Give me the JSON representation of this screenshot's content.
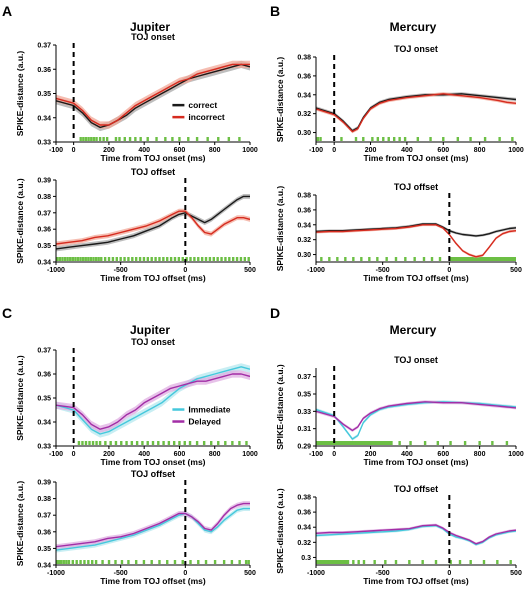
{
  "colors": {
    "correct": "#1a1a1a",
    "incorrect": "#d62b1f",
    "immediate": "#45c8dc",
    "delayed": "#a22ea6",
    "correct_band": "#a8a8a8",
    "incorrect_band": "#f2a898",
    "immediate_band": "#b6e8ef",
    "delayed_band": "#dfaee1",
    "significance": "#6cbf44"
  },
  "chart_data": [
    {
      "type": "line",
      "panel": "A",
      "monkey": "Jupiter",
      "title": "TOJ onset",
      "xlabel": "Time from TOJ onset (ms)",
      "ylabel": "SPIKE-distance (a.u.)",
      "xlim": [
        -100,
        1000
      ],
      "ylim": [
        0.33,
        0.37
      ],
      "xticks": [
        -100,
        0,
        200,
        400,
        600,
        800,
        1000
      ],
      "yticks": [
        0.33,
        0.34,
        0.35,
        0.36,
        0.37
      ],
      "band": 0.0015,
      "x": [
        -100,
        0,
        50,
        100,
        150,
        200,
        250,
        300,
        350,
        400,
        450,
        500,
        550,
        600,
        650,
        700,
        750,
        800,
        850,
        900,
        950,
        1000
      ],
      "legend": "inside",
      "series": [
        {
          "name": "correct",
          "key": "correct",
          "values": [
            0.347,
            0.345,
            0.342,
            0.338,
            0.336,
            0.337,
            0.339,
            0.341,
            0.344,
            0.346,
            0.348,
            0.35,
            0.352,
            0.354,
            0.356,
            0.357,
            0.358,
            0.359,
            0.36,
            0.361,
            0.362,
            0.361
          ]
        },
        {
          "name": "incorrect",
          "key": "incorrect",
          "values": [
            0.348,
            0.346,
            0.343,
            0.339,
            0.337,
            0.337,
            0.339,
            0.342,
            0.345,
            0.347,
            0.349,
            0.351,
            0.353,
            0.355,
            0.356,
            0.358,
            0.359,
            0.36,
            0.361,
            0.362,
            0.362,
            0.362
          ]
        }
      ],
      "significance_x": [
        40,
        55,
        70,
        85,
        100,
        115,
        130,
        150,
        170,
        190,
        240,
        260,
        290,
        320,
        350,
        380,
        420,
        470,
        520,
        560,
        600,
        650,
        700,
        760,
        820,
        880,
        940
      ]
    },
    {
      "type": "line",
      "panel": "B",
      "monkey": "Mercury",
      "title": "TOJ onset",
      "xlabel": "Time from TOJ onset (ms)",
      "ylabel": "SPIKE-distance (a.u.)",
      "xlim": [
        -100,
        1000
      ],
      "ylim": [
        0.29,
        0.38
      ],
      "xticks": [
        -100,
        0,
        200,
        400,
        600,
        800,
        1000
      ],
      "yticks": [
        0.3,
        0.32,
        0.34,
        0.36,
        0.38
      ],
      "band": 0.0018,
      "x": [
        -100,
        0,
        50,
        100,
        130,
        160,
        200,
        250,
        300,
        400,
        500,
        600,
        700,
        800,
        900,
        950,
        1000
      ],
      "legend": "none",
      "series": [
        {
          "name": "",
          "key": "correct",
          "values": [
            0.326,
            0.32,
            0.312,
            0.302,
            0.305,
            0.316,
            0.326,
            0.332,
            0.335,
            0.338,
            0.34,
            0.34,
            0.341,
            0.339,
            0.337,
            0.336,
            0.335
          ]
        },
        {
          "name": "",
          "key": "incorrect",
          "values": [
            0.325,
            0.319,
            0.311,
            0.301,
            0.304,
            0.315,
            0.325,
            0.331,
            0.334,
            0.337,
            0.339,
            0.341,
            0.339,
            0.337,
            0.334,
            0.332,
            0.331
          ]
        }
      ],
      "significance_x": [
        -90,
        -75,
        40,
        120,
        160,
        210,
        240,
        270,
        300,
        330,
        360,
        390,
        460,
        530,
        600,
        680,
        750,
        830,
        910,
        980
      ]
    },
    {
      "type": "line",
      "panel": "A",
      "monkey": "Jupiter",
      "title": "TOJ offset",
      "xlabel": "Time from TOJ offset (ms)",
      "ylabel": "SPIKE-distance (a.u.)",
      "xlim": [
        -1000,
        500
      ],
      "ylim": [
        0.34,
        0.39
      ],
      "xticks": [
        -1000,
        -500,
        0,
        500
      ],
      "yticks": [
        0.34,
        0.35,
        0.36,
        0.37,
        0.38,
        0.39
      ],
      "band": 0.0015,
      "x": [
        -1000,
        -900,
        -800,
        -700,
        -600,
        -500,
        -400,
        -300,
        -200,
        -100,
        -50,
        0,
        50,
        100,
        150,
        200,
        250,
        300,
        350,
        400,
        450,
        500
      ],
      "legend": "none",
      "series": [
        {
          "name": "",
          "key": "correct",
          "values": [
            0.348,
            0.349,
            0.35,
            0.351,
            0.352,
            0.354,
            0.356,
            0.359,
            0.362,
            0.367,
            0.369,
            0.37,
            0.368,
            0.366,
            0.364,
            0.366,
            0.369,
            0.372,
            0.375,
            0.378,
            0.38,
            0.38
          ]
        },
        {
          "name": "",
          "key": "incorrect",
          "values": [
            0.351,
            0.352,
            0.353,
            0.355,
            0.356,
            0.358,
            0.36,
            0.362,
            0.365,
            0.369,
            0.371,
            0.371,
            0.367,
            0.362,
            0.358,
            0.357,
            0.36,
            0.363,
            0.365,
            0.367,
            0.367,
            0.366
          ]
        }
      ],
      "significance_x": [
        -990,
        -970,
        -950,
        -930,
        -910,
        -890,
        -870,
        -850,
        -830,
        -810,
        -790,
        -770,
        -750,
        -730,
        -710,
        -690,
        -670,
        -650,
        -620,
        -590,
        -560,
        -530,
        -500,
        -470,
        -440,
        -410,
        -380,
        -350,
        -320,
        -290,
        -260,
        -230,
        -200,
        -170,
        -140,
        -110,
        -80,
        -50,
        -20,
        10,
        40,
        70,
        100,
        130,
        160,
        190,
        220,
        250,
        280,
        310,
        340,
        370,
        400,
        430,
        460,
        490
      ]
    },
    {
      "type": "line",
      "panel": "B",
      "monkey": "Mercury",
      "title": "TOJ offset",
      "xlabel": "Time from TOJ offset (ms)",
      "ylabel": "SPIKE-distance (a.u.)",
      "xlim": [
        -1000,
        500
      ],
      "ylim": [
        0.29,
        0.38
      ],
      "xticks": [
        -1000,
        -500,
        0,
        500
      ],
      "yticks": [
        0.3,
        0.32,
        0.34,
        0.36,
        0.38
      ],
      "band": 0.0018,
      "x": [
        -1000,
        -900,
        -800,
        -700,
        -600,
        -500,
        -400,
        -300,
        -200,
        -100,
        -50,
        0,
        50,
        100,
        150,
        200,
        250,
        300,
        350,
        400,
        450,
        500
      ],
      "legend": "none",
      "series": [
        {
          "name": "",
          "key": "correct",
          "values": [
            0.331,
            0.332,
            0.332,
            0.333,
            0.334,
            0.335,
            0.336,
            0.338,
            0.341,
            0.341,
            0.337,
            0.332,
            0.329,
            0.327,
            0.326,
            0.325,
            0.326,
            0.328,
            0.331,
            0.333,
            0.335,
            0.336
          ]
        },
        {
          "name": "",
          "key": "incorrect",
          "values": [
            0.33,
            0.331,
            0.331,
            0.332,
            0.333,
            0.334,
            0.335,
            0.337,
            0.34,
            0.34,
            0.336,
            0.327,
            0.315,
            0.305,
            0.3,
            0.297,
            0.299,
            0.31,
            0.322,
            0.328,
            0.331,
            0.332
          ]
        }
      ],
      "significance_x": [
        -960,
        -900,
        -840,
        -780,
        -720,
        -660,
        -600,
        -540,
        -470,
        -400,
        -330,
        -260,
        -190,
        -130,
        -70,
        5,
        15,
        25,
        35,
        45,
        55,
        65,
        75,
        85,
        95,
        105,
        115,
        125,
        135,
        145,
        155,
        165,
        175,
        185,
        195,
        205,
        215,
        225,
        235,
        245,
        255,
        265,
        275,
        285,
        295,
        305,
        315,
        325,
        335,
        345,
        355,
        365,
        375,
        385,
        395,
        405,
        415,
        425,
        435,
        445,
        455,
        465,
        475,
        485,
        495
      ]
    },
    {
      "type": "line",
      "panel": "C",
      "monkey": "Jupiter",
      "title": "TOJ onset",
      "xlabel": "Time from TOJ onset (ms)",
      "ylabel": "SPIKE-distance (a.u.)",
      "xlim": [
        -100,
        1000
      ],
      "ylim": [
        0.33,
        0.37
      ],
      "xticks": [
        -100,
        0,
        200,
        400,
        600,
        800,
        1000
      ],
      "yticks": [
        0.33,
        0.34,
        0.35,
        0.36,
        0.37
      ],
      "band": 0.0015,
      "x": [
        -100,
        0,
        50,
        100,
        150,
        200,
        250,
        300,
        350,
        400,
        450,
        500,
        550,
        600,
        650,
        700,
        750,
        800,
        850,
        900,
        950,
        1000
      ],
      "legend": "inside",
      "series": [
        {
          "name": "Immediate",
          "key": "immediate",
          "values": [
            0.347,
            0.345,
            0.341,
            0.337,
            0.335,
            0.336,
            0.338,
            0.34,
            0.342,
            0.344,
            0.346,
            0.348,
            0.351,
            0.354,
            0.356,
            0.358,
            0.359,
            0.36,
            0.361,
            0.362,
            0.363,
            0.362
          ]
        },
        {
          "name": "Delayed",
          "key": "delayed",
          "values": [
            0.347,
            0.346,
            0.343,
            0.339,
            0.337,
            0.338,
            0.34,
            0.343,
            0.345,
            0.348,
            0.35,
            0.352,
            0.354,
            0.355,
            0.356,
            0.357,
            0.357,
            0.358,
            0.359,
            0.36,
            0.36,
            0.359
          ]
        }
      ],
      "significance_x": [
        30,
        50,
        70,
        90,
        110,
        130,
        150,
        180,
        210,
        240,
        270,
        300,
        330,
        360,
        390,
        420,
        450,
        480,
        510,
        540,
        570,
        600,
        630,
        660,
        700,
        740,
        780,
        820,
        860,
        900,
        940,
        980
      ]
    },
    {
      "type": "line",
      "panel": "D",
      "monkey": "Mercury",
      "title": "TOJ onset",
      "xlabel": "Time from TOJ onset (ms)",
      "ylabel": "SPIKE-distance (a.u.)",
      "xlim": [
        -100,
        1000
      ],
      "ylim": [
        0.29,
        0.38
      ],
      "xticks": [
        -100,
        0,
        200,
        400,
        600,
        800,
        1000
      ],
      "yticks": [
        0.29,
        0.31,
        0.33,
        0.35,
        0.37
      ],
      "band": 0.0018,
      "x": [
        -100,
        0,
        50,
        100,
        130,
        160,
        200,
        250,
        300,
        400,
        500,
        600,
        700,
        800,
        900,
        950,
        1000
      ],
      "legend": "none",
      "series": [
        {
          "name": "",
          "key": "immediate",
          "values": [
            0.332,
            0.325,
            0.312,
            0.298,
            0.302,
            0.317,
            0.326,
            0.332,
            0.335,
            0.338,
            0.34,
            0.341,
            0.34,
            0.339,
            0.337,
            0.336,
            0.335
          ]
        },
        {
          "name": "",
          "key": "delayed",
          "values": [
            0.33,
            0.324,
            0.315,
            0.308,
            0.312,
            0.322,
            0.328,
            0.333,
            0.336,
            0.339,
            0.341,
            0.34,
            0.34,
            0.338,
            0.336,
            0.335,
            0.334
          ]
        }
      ],
      "significance_x": [
        -95,
        -85,
        -75,
        -65,
        -55,
        -45,
        -35,
        -25,
        -15,
        -5,
        5,
        15,
        25,
        35,
        45,
        55,
        65,
        75,
        85,
        95,
        105,
        115,
        125,
        135,
        145,
        155,
        165,
        175,
        185,
        195,
        205,
        215,
        225,
        235,
        245,
        255,
        265,
        275,
        285,
        295,
        305,
        315,
        360,
        420,
        500,
        570,
        640,
        720,
        800,
        870,
        950
      ]
    },
    {
      "type": "line",
      "panel": "C",
      "monkey": "Jupiter",
      "title": "TOJ offset",
      "xlabel": "Time from TOJ offset (ms)",
      "ylabel": "SPIKE-distance (a.u.)",
      "xlim": [
        -1000,
        500
      ],
      "ylim": [
        0.34,
        0.39
      ],
      "xticks": [
        -1000,
        -500,
        0,
        500
      ],
      "yticks": [
        0.34,
        0.35,
        0.36,
        0.37,
        0.38,
        0.39
      ],
      "band": 0.0015,
      "x": [
        -1000,
        -900,
        -800,
        -700,
        -600,
        -500,
        -400,
        -300,
        -200,
        -100,
        -50,
        0,
        50,
        100,
        150,
        200,
        250,
        300,
        350,
        400,
        450,
        500
      ],
      "legend": "none",
      "series": [
        {
          "name": "",
          "key": "immediate",
          "values": [
            0.349,
            0.35,
            0.351,
            0.352,
            0.354,
            0.356,
            0.358,
            0.361,
            0.364,
            0.368,
            0.37,
            0.371,
            0.369,
            0.365,
            0.361,
            0.36,
            0.363,
            0.367,
            0.37,
            0.373,
            0.374,
            0.374
          ]
        },
        {
          "name": "",
          "key": "delayed",
          "values": [
            0.351,
            0.352,
            0.353,
            0.354,
            0.356,
            0.357,
            0.359,
            0.362,
            0.365,
            0.369,
            0.371,
            0.371,
            0.369,
            0.366,
            0.362,
            0.361,
            0.365,
            0.37,
            0.374,
            0.376,
            0.377,
            0.377
          ]
        }
      ],
      "significance_x": [
        -990,
        -975,
        -960,
        -940,
        -920,
        -900,
        -870,
        -840,
        -810,
        -780,
        -750,
        -720,
        -690,
        -640,
        -590,
        -540,
        -490,
        -440,
        -380,
        -320,
        -260,
        -200,
        -140,
        -80,
        -20,
        40,
        100,
        160,
        230,
        300,
        360,
        420,
        470,
        490
      ]
    },
    {
      "type": "line",
      "panel": "D",
      "monkey": "Mercury",
      "title": "TOJ offset",
      "xlabel": "Time from TOJ offset (ms)",
      "ylabel": "SPIKE-distance (a.u.)",
      "xlim": [
        -1000,
        500
      ],
      "ylim": [
        0.29,
        0.38
      ],
      "xticks": [
        -1000,
        -500,
        0,
        500
      ],
      "yticks": [
        0.3,
        0.32,
        0.34,
        0.36,
        0.38
      ],
      "ytick_labels": [
        "0.3",
        "0.32",
        "0.34",
        "0.36",
        "0.38"
      ],
      "band": 0.0018,
      "x": [
        -1000,
        -900,
        -800,
        -700,
        -600,
        -500,
        -400,
        -300,
        -200,
        -100,
        -50,
        0,
        50,
        100,
        150,
        200,
        250,
        300,
        350,
        400,
        450,
        500
      ],
      "legend": "none",
      "series": [
        {
          "name": "",
          "key": "immediate",
          "values": [
            0.329,
            0.33,
            0.331,
            0.332,
            0.333,
            0.334,
            0.335,
            0.337,
            0.341,
            0.342,
            0.338,
            0.331,
            0.327,
            0.325,
            0.322,
            0.317,
            0.32,
            0.326,
            0.33,
            0.332,
            0.334,
            0.335
          ]
        },
        {
          "name": "",
          "key": "delayed",
          "values": [
            0.332,
            0.333,
            0.333,
            0.334,
            0.335,
            0.336,
            0.337,
            0.338,
            0.342,
            0.343,
            0.339,
            0.333,
            0.329,
            0.326,
            0.323,
            0.318,
            0.321,
            0.327,
            0.331,
            0.333,
            0.335,
            0.336
          ]
        }
      ],
      "significance_x": [
        -995,
        -985,
        -975,
        -965,
        -955,
        -945,
        -935,
        -925,
        -915,
        -905,
        -895,
        -885,
        -875,
        -865,
        -855,
        -845,
        -835,
        -825,
        -815,
        -805,
        -795,
        -785,
        -775,
        -760,
        -720,
        -680,
        -640,
        -560,
        -480,
        -400,
        -300,
        -200,
        -100,
        10,
        80,
        160,
        260,
        360,
        460
      ]
    }
  ]
}
